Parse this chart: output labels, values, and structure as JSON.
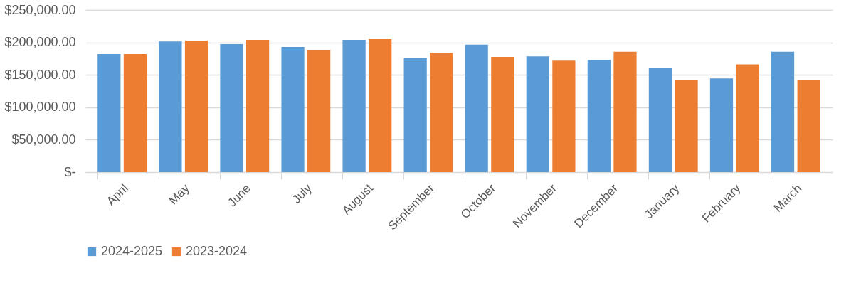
{
  "chart_data": {
    "type": "bar",
    "categories": [
      "April",
      "May",
      "June",
      "July",
      "August",
      "September",
      "October",
      "November",
      "December",
      "January",
      "February",
      "March"
    ],
    "series": [
      {
        "name": "2024-2025",
        "color": "#5b9bd5",
        "values": [
          182000,
          201500,
          197500,
          193000,
          204000,
          175500,
          196500,
          178500,
          173000,
          160000,
          144500,
          185500
        ]
      },
      {
        "name": "2023-2024",
        "color": "#ed7d31",
        "values": [
          182000,
          202500,
          204000,
          188500,
          205000,
          184000,
          177500,
          172000,
          185500,
          142500,
          166000,
          142500
        ]
      }
    ],
    "ylim": [
      0,
      250000
    ],
    "yticks": [
      {
        "value": 0,
        "label": "$-"
      },
      {
        "value": 50000,
        "label": "$50,000.00"
      },
      {
        "value": 100000,
        "label": "$100,000.00"
      },
      {
        "value": 150000,
        "label": "$150,000.00"
      },
      {
        "value": 200000,
        "label": "$200,000.00"
      },
      {
        "value": 250000,
        "label": "$250,000.00"
      }
    ],
    "grid": "y",
    "legend": "bottom"
  }
}
